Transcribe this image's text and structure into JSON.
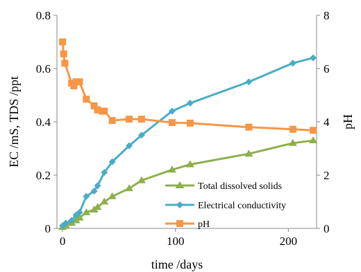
{
  "chart_data": {
    "type": "line",
    "title": "",
    "xlabel": "time /days",
    "ylabel": "EC /mS, TDS /ppt",
    "y2label": "pH",
    "xlim": [
      -5,
      225
    ],
    "ylim": [
      0,
      0.8
    ],
    "y2lim": [
      0,
      8
    ],
    "xticks": [
      0,
      100,
      200
    ],
    "xtick_labels": [
      "0",
      "100",
      "200"
    ],
    "yticks": [
      0,
      0.2,
      0.4,
      0.6,
      0.8
    ],
    "ytick_labels": [
      "0",
      "0.2",
      "0.4",
      "0.6",
      "0.8"
    ],
    "y2ticks": [
      0,
      2,
      4,
      6,
      8
    ],
    "y2tick_labels": [
      "0",
      "2",
      "4",
      "6",
      "8"
    ],
    "grid": false,
    "legend_position": "bottom-right",
    "series": [
      {
        "name": "Total dissolved solids",
        "axis": "left",
        "color": "#8db04a",
        "marker": "triangle",
        "x": [
          0,
          3,
          8,
          12,
          15,
          21,
          28,
          31,
          37,
          44,
          59,
          70,
          97,
          113,
          165,
          204,
          222
        ],
        "y": [
          0.005,
          0.01,
          0.02,
          0.03,
          0.04,
          0.06,
          0.07,
          0.08,
          0.1,
          0.12,
          0.15,
          0.18,
          0.22,
          0.24,
          0.28,
          0.32,
          0.33
        ]
      },
      {
        "name": "Electrical conductivity",
        "axis": "left",
        "color": "#4bacc6",
        "marker": "diamond",
        "x": [
          0,
          3,
          8,
          12,
          15,
          21,
          28,
          31,
          37,
          44,
          59,
          70,
          97,
          113,
          165,
          204,
          222
        ],
        "y": [
          0.01,
          0.02,
          0.03,
          0.05,
          0.06,
          0.12,
          0.14,
          0.16,
          0.21,
          0.25,
          0.31,
          0.35,
          0.44,
          0.47,
          0.55,
          0.62,
          0.64
        ]
      },
      {
        "name": "pH",
        "axis": "right",
        "color": "#f79646",
        "marker": "square",
        "x": [
          0,
          1,
          2,
          8,
          10,
          12,
          15,
          21,
          28,
          31,
          35,
          37,
          44,
          59,
          70,
          97,
          113,
          165,
          204,
          222
        ],
        "y": [
          7.0,
          6.55,
          6.2,
          5.45,
          5.35,
          5.5,
          5.5,
          4.85,
          4.6,
          4.45,
          4.4,
          4.4,
          4.05,
          4.1,
          4.1,
          3.97,
          3.95,
          3.8,
          3.72,
          3.68
        ]
      }
    ]
  }
}
